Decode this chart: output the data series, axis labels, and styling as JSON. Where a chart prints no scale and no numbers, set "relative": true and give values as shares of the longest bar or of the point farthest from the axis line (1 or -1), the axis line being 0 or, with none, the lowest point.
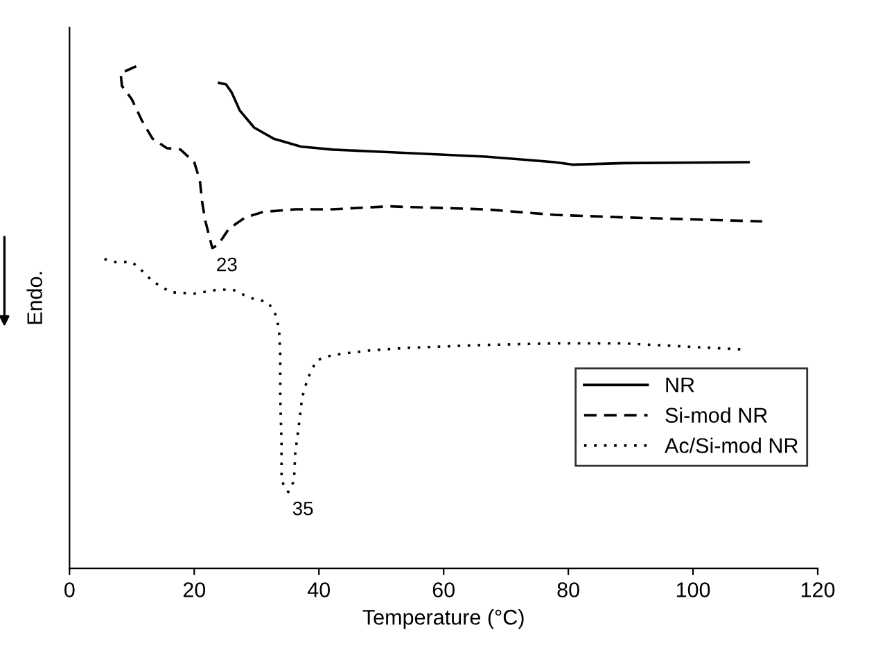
{
  "chart_data": {
    "type": "line",
    "relative": true,
    "xlabel": "Temperature (°C)",
    "ylabel": "Endo.",
    "xlim": [
      0,
      120
    ],
    "xticks": [
      0,
      20,
      40,
      60,
      80,
      100,
      120
    ],
    "legend": "bottom right",
    "grid": false,
    "marker": "none",
    "series": [
      {
        "name": "NR",
        "color": "#000000",
        "line_style": "solid",
        "x": [
          24.0,
          25.1,
          26.0,
          27.3,
          29.6,
          32.7,
          37.1,
          42.2,
          51.1,
          66.7,
          77.8,
          80.7,
          88.9,
          108.9
        ],
        "values": [
          0.967,
          0.964,
          0.948,
          0.912,
          0.878,
          0.856,
          0.84,
          0.834,
          0.829,
          0.82,
          0.809,
          0.804,
          0.807,
          0.809
        ]
      },
      {
        "name": "Si-mod NR",
        "color": "#000000",
        "line_style": "dashed",
        "x": [
          10.7,
          8.2,
          8.4,
          10.0,
          11.6,
          13.3,
          15.6,
          17.8,
          20.0,
          20.9,
          21.3,
          21.8,
          22.9,
          23.8,
          25.6,
          28.2,
          31.1,
          36.2,
          42.2,
          51.1,
          66.7,
          77.8,
          88.9,
          111.1
        ],
        "values": [
          1.0,
          0.986,
          0.961,
          0.934,
          0.892,
          0.856,
          0.837,
          0.834,
          0.809,
          0.773,
          0.727,
          0.691,
          0.638,
          0.644,
          0.677,
          0.699,
          0.71,
          0.715,
          0.715,
          0.721,
          0.715,
          0.704,
          0.699,
          0.691
        ]
      },
      {
        "name": "Ac/Si-mod NR",
        "color": "#000000",
        "line_style": "dotted",
        "x": [
          5.6,
          7.3,
          10.0,
          11.1,
          13.3,
          16.2,
          20.0,
          23.8,
          26.2,
          28.9,
          31.8,
          32.9,
          33.6,
          33.8,
          33.8,
          34.0,
          34.0,
          34.4,
          35.1,
          36.0,
          36.2,
          36.9,
          37.3,
          38.2,
          39.6,
          42.2,
          48.2,
          54.0,
          66.7,
          77.8,
          88.9,
          107.8
        ],
        "values": [
          0.616,
          0.61,
          0.61,
          0.599,
          0.572,
          0.55,
          0.547,
          0.555,
          0.555,
          0.539,
          0.53,
          0.511,
          0.478,
          0.423,
          0.34,
          0.249,
          0.185,
          0.16,
          0.152,
          0.174,
          0.229,
          0.296,
          0.34,
          0.378,
          0.414,
          0.425,
          0.434,
          0.439,
          0.445,
          0.448,
          0.448,
          0.436
        ]
      }
    ],
    "annotations": [
      {
        "text": "23",
        "x": 22.9,
        "y": 0.638
      },
      {
        "text": "35",
        "x": 35.1,
        "y": 0.152
      }
    ]
  }
}
